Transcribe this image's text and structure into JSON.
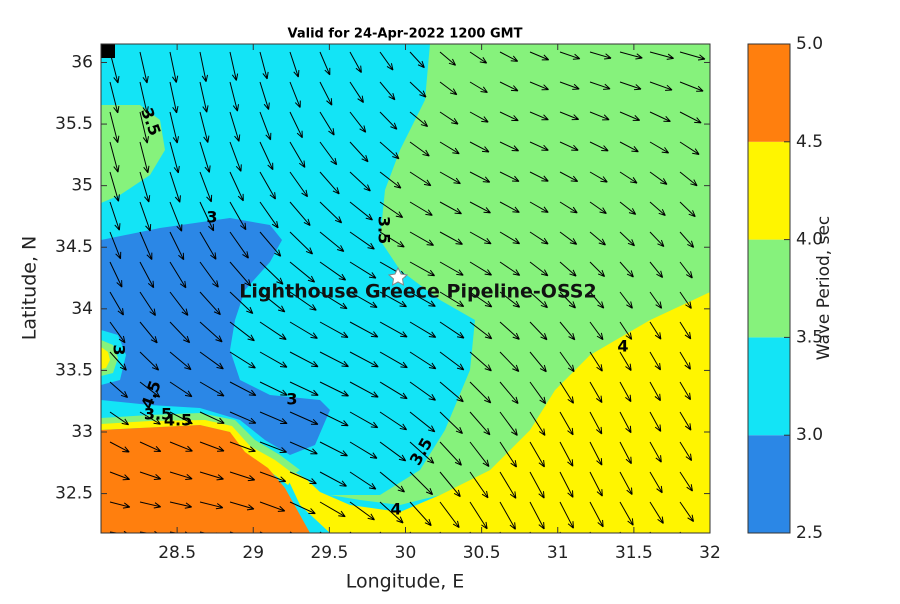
{
  "chart_data": {
    "type": "contour",
    "title": "Valid for 24-Apr-2022 1200 GMT",
    "xlabel": "Longitude, E",
    "ylabel": "Latitude, N",
    "xlim": [
      28,
      32
    ],
    "ylim": [
      32.18,
      36.15
    ],
    "xticks": [
      28.5,
      29,
      29.5,
      30,
      30.5,
      31,
      31.5,
      32
    ],
    "yticks": [
      32.5,
      33,
      33.5,
      34,
      34.5,
      35,
      35.5,
      36
    ],
    "colorbar": {
      "label": "Wave Period, sec",
      "lim": [
        2.5,
        5
      ],
      "ticks": [
        2.5,
        {
          "value": 3,
          "label": "3.0"
        },
        3.5,
        {
          "value": 4,
          "label": "4.0"
        },
        4.5,
        {
          "value": 5,
          "label": "5.0"
        }
      ],
      "colors": [
        "#2b87e6",
        "#13e4f6",
        "#86f27c",
        "#fff500",
        "#ff7f0e"
      ]
    },
    "contour_labels": [
      "3.5",
      "3",
      "3.5",
      "3",
      "4",
      "3",
      "4.5",
      "3.5",
      "4.5",
      "3.5",
      "4"
    ],
    "annotation": "Lighthouse Greece Pipeline-OSS2"
  }
}
